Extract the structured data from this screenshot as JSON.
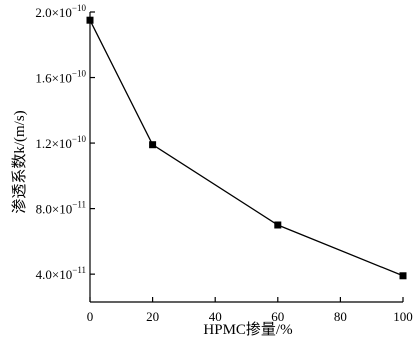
{
  "chart_data": {
    "type": "line",
    "xlabel": "HPMC掺量/%",
    "ylabel": "渗透系数k/(m/s)",
    "xlim": [
      0,
      100
    ],
    "ylim": [
      2.3e-11,
      2e-10
    ],
    "x_ticks": [
      0,
      20,
      40,
      60,
      80,
      100
    ],
    "x_tick_labels": [
      "0",
      "20",
      "40",
      "60",
      "80",
      "100"
    ],
    "y_ticks": [
      4e-11,
      8e-11,
      1.2e-10,
      1.6e-10,
      2e-10
    ],
    "y_tick_labels": [
      {
        "mantissa": "4.0",
        "exp": "−11"
      },
      {
        "mantissa": "8.0",
        "exp": "−11"
      },
      {
        "mantissa": "1.2",
        "exp": "−10"
      },
      {
        "mantissa": "1.6",
        "exp": "−10"
      },
      {
        "mantissa": "2.0",
        "exp": "−10"
      }
    ],
    "grid": false,
    "series": [
      {
        "x": [
          0,
          20,
          60,
          100
        ],
        "y": [
          1.95e-10,
          1.19e-10,
          7e-11,
          3.9e-11
        ],
        "marker": "square",
        "color": "#000000"
      }
    ]
  }
}
